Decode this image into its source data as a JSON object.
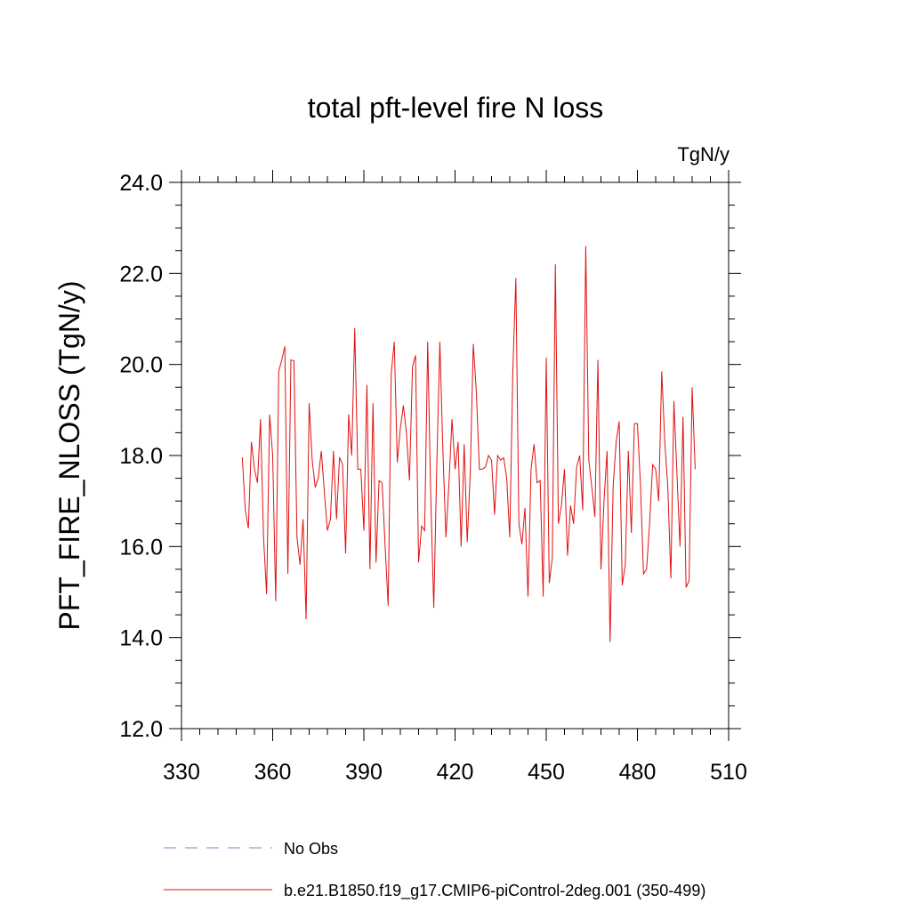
{
  "chart_data": {
    "type": "line",
    "title": "total pft-level fire N loss",
    "units_label": "TgN/y",
    "ylabel": "PFT_FIRE_NLOSS  (TgN/y)",
    "xlabel": "",
    "xlim": [
      330,
      510
    ],
    "ylim": [
      12.0,
      24.0
    ],
    "x_ticks": [
      330,
      360,
      390,
      420,
      450,
      480,
      510
    ],
    "x_tick_labels": [
      "330",
      "360",
      "390",
      "420",
      "450",
      "480",
      "510"
    ],
    "y_ticks": [
      12.0,
      14.0,
      16.0,
      18.0,
      20.0,
      22.0,
      24.0
    ],
    "y_tick_labels": [
      "12.0",
      "14.0",
      "16.0",
      "18.0",
      "20.0",
      "22.0",
      "24.0"
    ],
    "grid": false,
    "legend_position": "bottom",
    "legend": [
      {
        "label": "No Obs",
        "style": "dashed",
        "color": "#8080c0"
      },
      {
        "label": "b.e21.B1850.f19_g17.CMIP6-piControl-2deg.001 (350-499)",
        "style": "solid",
        "color": "#e01010"
      }
    ],
    "series": [
      {
        "name": "b.e21.B1850.f19_g17.CMIP6-piControl-2deg.001 (350-499)",
        "color": "#e01010",
        "x_start": 350,
        "x_step": 1,
        "values": [
          17.96,
          16.8,
          16.4,
          18.3,
          17.7,
          17.4,
          18.8,
          16.2,
          14.95,
          18.9,
          18.0,
          14.8,
          19.85,
          20.1,
          20.4,
          15.4,
          20.1,
          20.08,
          16.2,
          15.6,
          16.6,
          14.4,
          19.15,
          17.9,
          17.3,
          17.5,
          18.1,
          17.2,
          16.35,
          16.6,
          18.1,
          16.6,
          17.96,
          17.8,
          15.85,
          18.9,
          18.0,
          20.8,
          17.7,
          17.7,
          16.35,
          19.55,
          15.5,
          19.15,
          15.65,
          17.45,
          17.4,
          16.0,
          14.7,
          19.8,
          20.5,
          17.85,
          18.6,
          19.1,
          18.5,
          17.45,
          19.95,
          20.2,
          15.65,
          16.45,
          16.35,
          20.5,
          17.1,
          14.65,
          17.8,
          20.5,
          18.1,
          16.2,
          17.4,
          18.8,
          17.7,
          18.3,
          16.0,
          18.25,
          16.1,
          17.6,
          20.45,
          19.4,
          17.7,
          17.7,
          17.75,
          18.0,
          17.9,
          16.7,
          18.0,
          17.9,
          17.95,
          17.5,
          16.2,
          19.85,
          21.9,
          16.5,
          16.05,
          16.85,
          14.9,
          17.7,
          18.25,
          17.4,
          17.45,
          14.9,
          20.15,
          15.2,
          15.75,
          22.2,
          16.5,
          16.9,
          17.7,
          15.8,
          16.9,
          16.5,
          17.75,
          18.0,
          16.8,
          22.6,
          17.9,
          17.3,
          16.65,
          20.1,
          15.5,
          17.0,
          18.1,
          13.9,
          17.3,
          18.3,
          18.75,
          15.15,
          15.6,
          18.1,
          16.3,
          18.7,
          18.7,
          17.35,
          15.4,
          15.5,
          16.5,
          17.8,
          17.7,
          17.0,
          19.85,
          18.3,
          17.3,
          15.3,
          19.2,
          17.6,
          16.0,
          18.85,
          15.1,
          15.25,
          19.5,
          17.7
        ]
      }
    ]
  }
}
